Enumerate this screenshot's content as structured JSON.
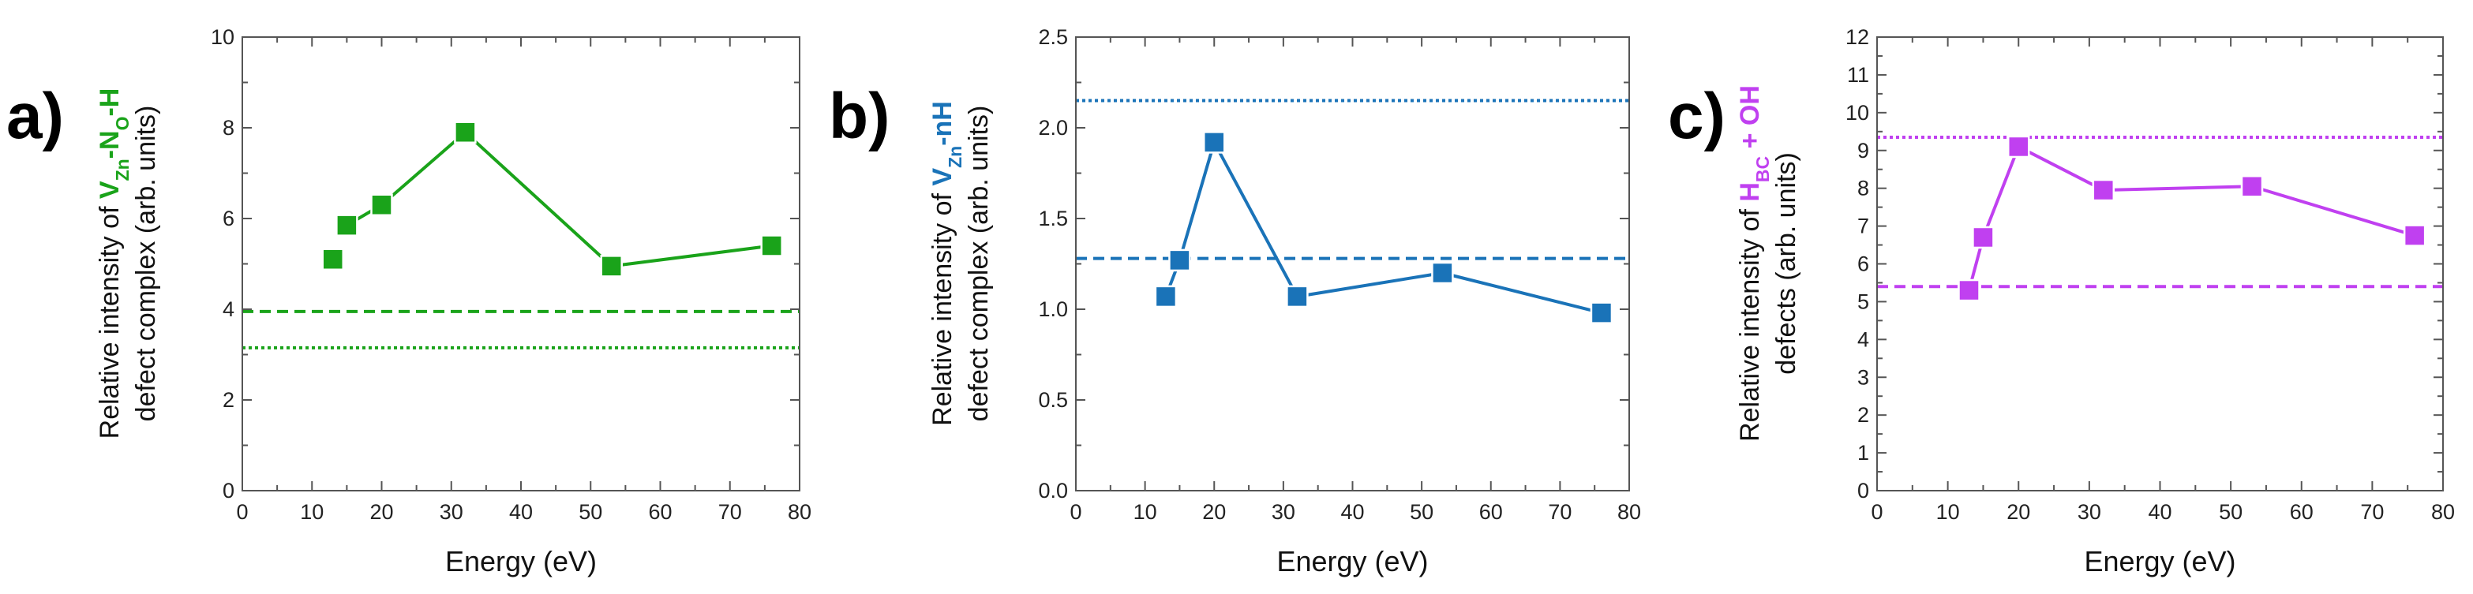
{
  "figure": {
    "panel_tags": [
      "a)",
      "b)",
      "c)"
    ]
  },
  "chart_data": [
    {
      "type": "line",
      "panel": "a)",
      "color": "#1aa31a",
      "xlabel": "Energy (eV)",
      "ylabel_line1_prefix": "Relative intensity of ",
      "ylabel_species": [
        "V",
        "Zn",
        "-N",
        "O",
        "-H"
      ],
      "ylabel_line2": "defect complex (arb. units)",
      "xlim": [
        0,
        80
      ],
      "ylim": [
        0,
        10
      ],
      "xticks": [
        "0",
        "10",
        "20",
        "30",
        "40",
        "50",
        "60",
        "70",
        "80"
      ],
      "yticks": [
        "0",
        "2",
        "4",
        "6",
        "8",
        "10"
      ],
      "xtick_values": [
        0,
        10,
        20,
        30,
        40,
        50,
        60,
        70,
        80
      ],
      "ytick_values": [
        0,
        2,
        4,
        6,
        8,
        10
      ],
      "x": [
        13,
        15,
        20,
        32,
        53,
        76
      ],
      "y": [
        5.1,
        5.85,
        6.3,
        7.9,
        4.95,
        5.4
      ],
      "gaps": [
        0
      ],
      "dashed_ref": 3.95,
      "dotted_ref": 3.15
    },
    {
      "type": "line",
      "panel": "b)",
      "color": "#1a73b8",
      "xlabel": "Energy (eV)",
      "ylabel_line1_prefix": "Relative intensity of ",
      "ylabel_species": [
        "V",
        "Zn",
        "-nH"
      ],
      "ylabel_line2": "defect complex (arb. units)",
      "xlim": [
        0,
        80
      ],
      "ylim": [
        0,
        2.5
      ],
      "xticks": [
        "0",
        "10",
        "20",
        "30",
        "40",
        "50",
        "60",
        "70",
        "80"
      ],
      "yticks": [
        "0.0",
        "0.5",
        "1.0",
        "1.5",
        "2.0",
        "2.5"
      ],
      "xtick_values": [
        0,
        10,
        20,
        30,
        40,
        50,
        60,
        70,
        80
      ],
      "ytick_values": [
        0,
        0.5,
        1.0,
        1.5,
        2.0,
        2.5
      ],
      "x": [
        13,
        15,
        20,
        32,
        53,
        76
      ],
      "y": [
        1.07,
        1.27,
        1.92,
        1.07,
        1.2,
        0.98
      ],
      "gaps": [],
      "dashed_ref": 1.28,
      "dotted_ref": 2.15
    },
    {
      "type": "line",
      "panel": "c)",
      "color": "#c040f0",
      "xlabel": "Energy (eV)",
      "ylabel_line1_prefix": "Relative intensity of ",
      "ylabel_species": [
        "H",
        "BC",
        " + OH"
      ],
      "ylabel_line2": "defects (arb. units)",
      "xlim": [
        0,
        80
      ],
      "ylim": [
        0,
        12
      ],
      "xticks": [
        "0",
        "10",
        "20",
        "30",
        "40",
        "50",
        "60",
        "70",
        "80"
      ],
      "yticks": [
        "0",
        "1",
        "2",
        "3",
        "4",
        "5",
        "6",
        "7",
        "8",
        "9",
        "10",
        "11",
        "12"
      ],
      "xtick_values": [
        0,
        10,
        20,
        30,
        40,
        50,
        60,
        70,
        80
      ],
      "ytick_values": [
        0,
        1,
        2,
        3,
        4,
        5,
        6,
        7,
        8,
        9,
        10,
        11,
        12
      ],
      "x": [
        13,
        15,
        20,
        32,
        53,
        76
      ],
      "y": [
        5.3,
        6.7,
        9.1,
        7.95,
        8.05,
        6.75
      ],
      "gaps": [],
      "dashed_ref": 5.4,
      "dotted_ref": 9.35
    }
  ]
}
